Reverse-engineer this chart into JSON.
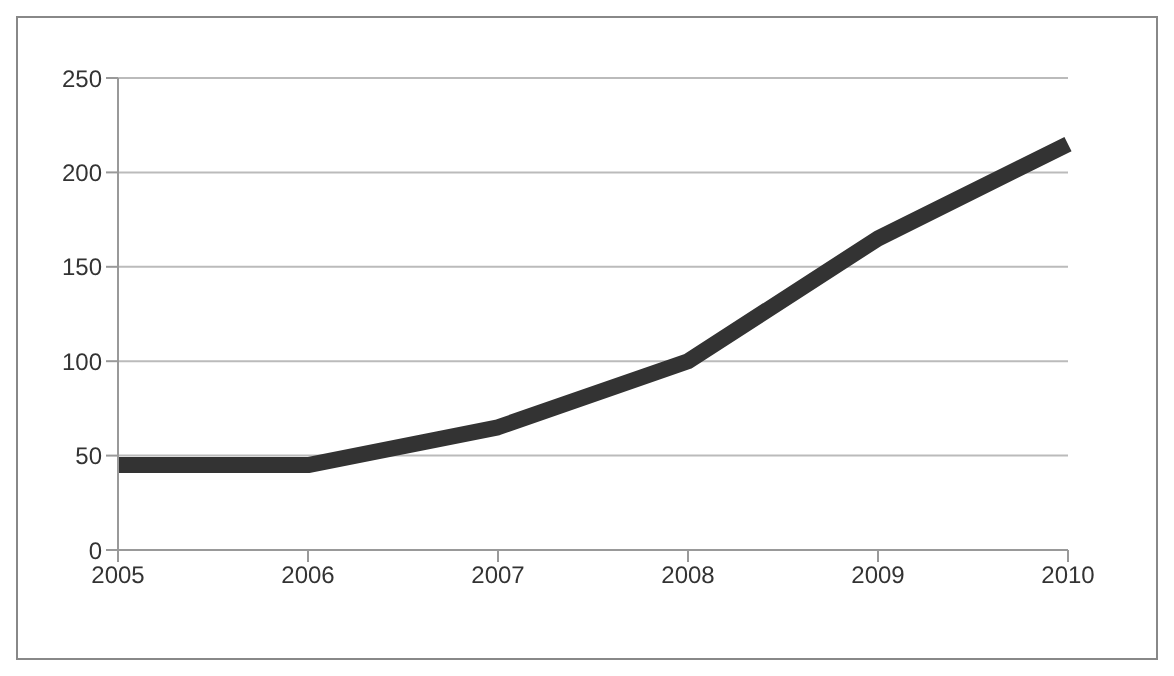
{
  "chart_data": {
    "type": "line",
    "categories": [
      "2005",
      "2006",
      "2007",
      "2008",
      "2009",
      "2010"
    ],
    "series": [
      {
        "color": "#333333",
        "values": [
          45,
          45,
          65,
          100,
          165,
          215
        ]
      }
    ],
    "ylim": [
      0,
      250
    ],
    "yticks": [
      0,
      50,
      100,
      150,
      200,
      250
    ],
    "grid": "y",
    "marker": "none",
    "line_style": "solid"
  }
}
